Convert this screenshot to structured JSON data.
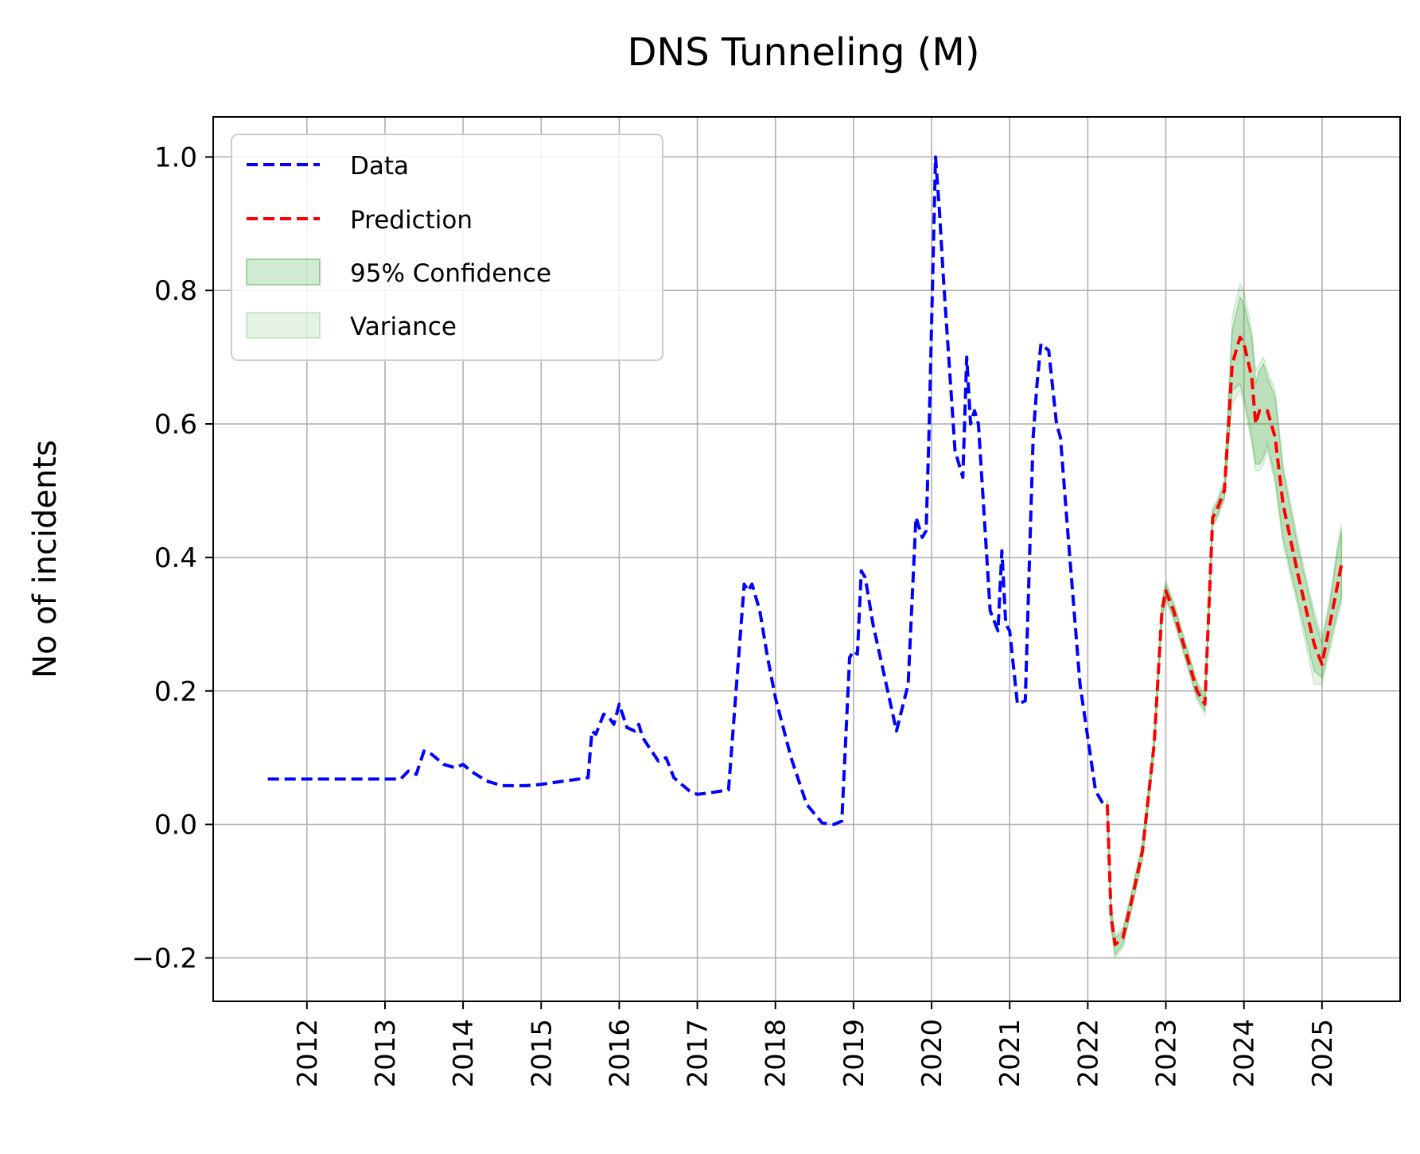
{
  "chart_data": {
    "type": "line",
    "title": "DNS Tunneling (M)",
    "xlabel": "",
    "ylabel": "No of incidents",
    "xlim": [
      2010.8,
      2026.0
    ],
    "ylim": [
      -0.265,
      1.06
    ],
    "x_ticks": [
      2012,
      2013,
      2014,
      2015,
      2016,
      2017,
      2018,
      2019,
      2020,
      2021,
      2022,
      2023,
      2024,
      2025
    ],
    "x_tick_labels": [
      "2012",
      "2013",
      "2014",
      "2015",
      "2016",
      "2017",
      "2018",
      "2019",
      "2020",
      "2021",
      "2022",
      "2023",
      "2024",
      "2025"
    ],
    "y_ticks": [
      -0.2,
      0.0,
      0.2,
      0.4,
      0.6,
      0.8,
      1.0
    ],
    "y_tick_labels": [
      "−0.2",
      "0.0",
      "0.2",
      "0.4",
      "0.6",
      "0.8",
      "1.0"
    ],
    "grid": true,
    "legend_position": "top-left",
    "legend": [
      "Data",
      "Prediction",
      "95% Confidence",
      "Variance"
    ],
    "colors": {
      "data": "#0000ff",
      "prediction": "#ff0000",
      "confidence": "#2ca02c",
      "variance": "#2ca02c",
      "grid": "#b0b0b0"
    },
    "series": [
      {
        "name": "Data",
        "style": "dashed",
        "x": [
          2011.5,
          2012.0,
          2012.5,
          2013.0,
          2013.2,
          2013.3,
          2013.4,
          2013.5,
          2013.6,
          2013.75,
          2013.9,
          2014.0,
          2014.1,
          2014.3,
          2014.5,
          2014.8,
          2015.0,
          2015.3,
          2015.6,
          2015.65,
          2015.7,
          2015.75,
          2015.8,
          2015.87,
          2015.93,
          2016.0,
          2016.1,
          2016.2,
          2016.25,
          2016.3,
          2016.5,
          2016.6,
          2016.7,
          2016.9,
          2017.0,
          2017.2,
          2017.4,
          2017.6,
          2017.65,
          2017.7,
          2017.8,
          2017.9,
          2018.0,
          2018.2,
          2018.4,
          2018.6,
          2018.75,
          2018.85,
          2018.95,
          2019.0,
          2019.05,
          2019.1,
          2019.15,
          2019.25,
          2019.4,
          2019.55,
          2019.7,
          2019.8,
          2019.88,
          2019.93,
          2019.97,
          2020.05,
          2020.1,
          2020.15,
          2020.3,
          2020.4,
          2020.45,
          2020.5,
          2020.55,
          2020.6,
          2020.75,
          2020.85,
          2020.9,
          2020.95,
          2021.0,
          2021.1,
          2021.2,
          2021.3,
          2021.35,
          2021.4,
          2021.5,
          2021.6,
          2021.65,
          2021.75,
          2021.9,
          2022.0,
          2022.1,
          2022.2
        ],
        "y": [
          0.068,
          0.068,
          0.068,
          0.068,
          0.068,
          0.08,
          0.075,
          0.11,
          0.105,
          0.09,
          0.085,
          0.09,
          0.08,
          0.065,
          0.058,
          0.058,
          0.06,
          0.065,
          0.07,
          0.14,
          0.135,
          0.15,
          0.165,
          0.16,
          0.15,
          0.18,
          0.145,
          0.14,
          0.15,
          0.13,
          0.095,
          0.1,
          0.07,
          0.05,
          0.045,
          0.048,
          0.052,
          0.36,
          0.35,
          0.36,
          0.32,
          0.25,
          0.19,
          0.1,
          0.03,
          0.002,
          0.0,
          0.005,
          0.25,
          0.26,
          0.255,
          0.38,
          0.37,
          0.3,
          0.22,
          0.14,
          0.21,
          0.46,
          0.43,
          0.44,
          0.6,
          1.0,
          0.92,
          0.82,
          0.56,
          0.52,
          0.7,
          0.6,
          0.62,
          0.6,
          0.32,
          0.29,
          0.41,
          0.3,
          0.29,
          0.18,
          0.185,
          0.58,
          0.66,
          0.72,
          0.71,
          0.6,
          0.58,
          0.43,
          0.21,
          0.13,
          0.05,
          0.03
        ]
      },
      {
        "name": "Prediction",
        "style": "dashed",
        "x": [
          2022.25,
          2022.3,
          2022.35,
          2022.45,
          2022.55,
          2022.7,
          2022.85,
          2022.95,
          2023.0,
          2023.1,
          2023.2,
          2023.3,
          2023.4,
          2023.5,
          2023.6,
          2023.65,
          2023.75,
          2023.85,
          2023.95,
          2024.0,
          2024.1,
          2024.15,
          2024.2,
          2024.25,
          2024.3,
          2024.4,
          2024.5,
          2024.7,
          2024.9,
          2025.0,
          2025.1,
          2025.2,
          2025.25
        ],
        "y": [
          0.03,
          -0.14,
          -0.18,
          -0.17,
          -0.12,
          -0.04,
          0.12,
          0.32,
          0.35,
          0.32,
          0.28,
          0.24,
          0.2,
          0.18,
          0.46,
          0.47,
          0.5,
          0.69,
          0.73,
          0.72,
          0.67,
          0.6,
          0.62,
          0.62,
          0.62,
          0.58,
          0.48,
          0.37,
          0.27,
          0.24,
          0.3,
          0.36,
          0.39
        ]
      },
      {
        "name": "95% Confidence",
        "style": "band",
        "x": [
          2022.25,
          2022.3,
          2022.35,
          2022.45,
          2022.55,
          2022.7,
          2022.85,
          2022.95,
          2023.0,
          2023.1,
          2023.2,
          2023.3,
          2023.4,
          2023.5,
          2023.6,
          2023.65,
          2023.75,
          2023.85,
          2023.95,
          2024.0,
          2024.1,
          2024.15,
          2024.2,
          2024.25,
          2024.3,
          2024.4,
          2024.5,
          2024.7,
          2024.9,
          2025.0,
          2025.1,
          2025.2,
          2025.25
        ],
        "lower": [
          0.025,
          -0.15,
          -0.195,
          -0.18,
          -0.13,
          -0.05,
          0.11,
          0.31,
          0.34,
          0.31,
          0.27,
          0.23,
          0.19,
          0.17,
          0.45,
          0.46,
          0.49,
          0.65,
          0.66,
          0.64,
          0.58,
          0.54,
          0.54,
          0.55,
          0.57,
          0.52,
          0.43,
          0.33,
          0.23,
          0.22,
          0.27,
          0.32,
          0.34
        ],
        "upper": [
          0.035,
          -0.13,
          -0.17,
          -0.16,
          -0.11,
          -0.03,
          0.13,
          0.33,
          0.36,
          0.33,
          0.29,
          0.25,
          0.21,
          0.19,
          0.47,
          0.48,
          0.51,
          0.74,
          0.79,
          0.78,
          0.73,
          0.66,
          0.68,
          0.69,
          0.67,
          0.64,
          0.53,
          0.41,
          0.31,
          0.27,
          0.33,
          0.41,
          0.44
        ]
      },
      {
        "name": "Variance",
        "style": "band",
        "x": [
          2022.25,
          2022.3,
          2022.35,
          2022.45,
          2022.55,
          2022.7,
          2022.85,
          2022.95,
          2023.0,
          2023.1,
          2023.2,
          2023.3,
          2023.4,
          2023.5,
          2023.6,
          2023.65,
          2023.75,
          2023.85,
          2023.95,
          2024.0,
          2024.1,
          2024.15,
          2024.2,
          2024.25,
          2024.3,
          2024.4,
          2024.5,
          2024.7,
          2024.9,
          2025.0,
          2025.1,
          2025.2,
          2025.25
        ],
        "lower": [
          0.02,
          -0.16,
          -0.2,
          -0.185,
          -0.135,
          -0.055,
          0.105,
          0.305,
          0.335,
          0.305,
          0.265,
          0.225,
          0.185,
          0.165,
          0.445,
          0.455,
          0.485,
          0.63,
          0.65,
          0.63,
          0.57,
          0.53,
          0.53,
          0.54,
          0.56,
          0.51,
          0.42,
          0.32,
          0.21,
          0.21,
          0.26,
          0.31,
          0.33
        ],
        "upper": [
          0.04,
          -0.12,
          -0.165,
          -0.155,
          -0.105,
          -0.025,
          0.135,
          0.335,
          0.365,
          0.335,
          0.295,
          0.255,
          0.215,
          0.195,
          0.475,
          0.485,
          0.515,
          0.76,
          0.81,
          0.8,
          0.74,
          0.68,
          0.69,
          0.7,
          0.68,
          0.65,
          0.54,
          0.42,
          0.32,
          0.28,
          0.34,
          0.42,
          0.45
        ]
      }
    ]
  }
}
